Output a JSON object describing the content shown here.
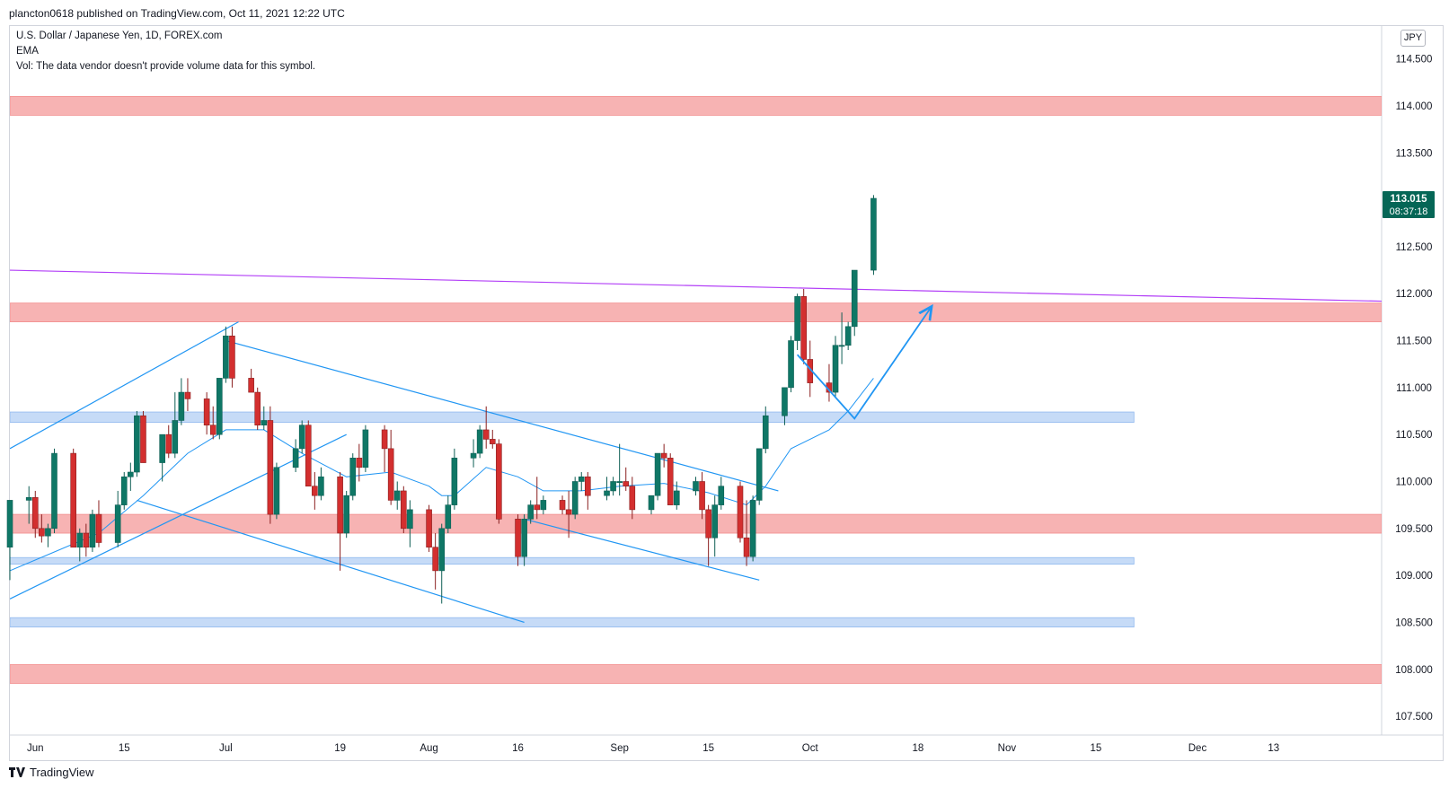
{
  "header": {
    "published": "plancton0618 published on TradingView.com, Oct 11, 2021 12:22 UTC"
  },
  "legend": {
    "symbol": "U.S. Dollar / Japanese Yen, 1D, FOREX.com",
    "indicator": "EMA",
    "volume_note": "Vol: The data vendor doesn't provide volume data for this symbol."
  },
  "currency_button": "JPY",
  "last_price": {
    "price": "113.015",
    "countdown": "08:37:18"
  },
  "footer": {
    "brand": "TradingView"
  },
  "colors": {
    "up": "#26a69a",
    "up_body": "#0f7766",
    "down": "#d32f2f",
    "resistance_zone": "#f7b3b3",
    "support_zone": "#c6dbf7",
    "trendline": "#2196f3",
    "long_trendline": "#b23ef7",
    "ema": "#2196f3",
    "price_badge": "#056656"
  },
  "chart_data": {
    "type": "candlestick",
    "title": "U.S. Dollar / Japanese Yen, 1D, FOREX.com",
    "y_axis": {
      "ticks": [
        "114.500",
        "114.000",
        "113.500",
        "113.000",
        "112.500",
        "112.000",
        "111.500",
        "111.000",
        "110.500",
        "110.000",
        "109.500",
        "109.000",
        "108.500",
        "108.000",
        "107.500"
      ],
      "range": [
        107.3,
        114.85
      ]
    },
    "x_axis": {
      "tick_labels": [
        "Jun",
        "15",
        "Jul",
        "19",
        "Aug",
        "16",
        "Sep",
        "15",
        "Oct",
        "18",
        "Nov",
        "15",
        "Dec",
        "13"
      ],
      "tick_dates": [
        "2021-06-01",
        "2021-06-15",
        "2021-07-01",
        "2021-07-19",
        "2021-08-02",
        "2021-08-16",
        "2021-09-01",
        "2021-09-15",
        "2021-10-01",
        "2021-10-18",
        "2021-11-01",
        "2021-11-15",
        "2021-12-01",
        "2021-12-13"
      ],
      "range": [
        "2021-05-28",
        "2021-12-30"
      ]
    },
    "candles": [
      {
        "d": "2021-05-28",
        "o": 109.3,
        "h": 109.8,
        "l": 108.95,
        "c": 109.8
      },
      {
        "d": "2021-05-31",
        "o": 109.8,
        "h": 109.95,
        "l": 109.55,
        "c": 109.83
      },
      {
        "d": "2021-06-01",
        "o": 109.83,
        "h": 109.9,
        "l": 109.4,
        "c": 109.5
      },
      {
        "d": "2021-06-02",
        "o": 109.5,
        "h": 109.65,
        "l": 109.35,
        "c": 109.42
      },
      {
        "d": "2021-06-03",
        "o": 109.42,
        "h": 109.55,
        "l": 109.3,
        "c": 109.5
      },
      {
        "d": "2021-06-04",
        "o": 109.5,
        "h": 110.35,
        "l": 109.45,
        "c": 110.3
      },
      {
        "d": "2021-06-07",
        "o": 110.3,
        "h": 110.35,
        "l": 109.3,
        "c": 109.3
      },
      {
        "d": "2021-06-08",
        "o": 109.3,
        "h": 109.5,
        "l": 109.15,
        "c": 109.45
      },
      {
        "d": "2021-06-09",
        "o": 109.45,
        "h": 109.55,
        "l": 109.2,
        "c": 109.3
      },
      {
        "d": "2021-06-10",
        "o": 109.3,
        "h": 109.7,
        "l": 109.25,
        "c": 109.65
      },
      {
        "d": "2021-06-11",
        "o": 109.65,
        "h": 109.8,
        "l": 109.3,
        "c": 109.35
      },
      {
        "d": "2021-06-14",
        "o": 109.35,
        "h": 109.9,
        "l": 109.3,
        "c": 109.75
      },
      {
        "d": "2021-06-15",
        "o": 109.75,
        "h": 110.1,
        "l": 109.7,
        "c": 110.05
      },
      {
        "d": "2021-06-16",
        "o": 110.05,
        "h": 110.2,
        "l": 109.9,
        "c": 110.1
      },
      {
        "d": "2021-06-17",
        "o": 110.1,
        "h": 110.75,
        "l": 110.05,
        "c": 110.7
      },
      {
        "d": "2021-06-18",
        "o": 110.7,
        "h": 110.75,
        "l": 110.2,
        "c": 110.2
      },
      {
        "d": "2021-06-21",
        "o": 110.2,
        "h": 110.5,
        "l": 110.0,
        "c": 110.5
      },
      {
        "d": "2021-06-22",
        "o": 110.5,
        "h": 110.6,
        "l": 110.25,
        "c": 110.3
      },
      {
        "d": "2021-06-23",
        "o": 110.3,
        "h": 110.95,
        "l": 110.25,
        "c": 110.65
      },
      {
        "d": "2021-06-24",
        "o": 110.65,
        "h": 111.1,
        "l": 110.6,
        "c": 110.95
      },
      {
        "d": "2021-06-25",
        "o": 110.95,
        "h": 111.1,
        "l": 110.75,
        "c": 110.88
      },
      {
        "d": "2021-06-28",
        "o": 110.88,
        "h": 110.95,
        "l": 110.5,
        "c": 110.6
      },
      {
        "d": "2021-06-29",
        "o": 110.6,
        "h": 110.8,
        "l": 110.45,
        "c": 110.5
      },
      {
        "d": "2021-06-30",
        "o": 110.5,
        "h": 111.1,
        "l": 110.45,
        "c": 111.1
      },
      {
        "d": "2021-07-01",
        "o": 111.1,
        "h": 111.65,
        "l": 111.05,
        "c": 111.55
      },
      {
        "d": "2021-07-02",
        "o": 111.55,
        "h": 111.65,
        "l": 111.0,
        "c": 111.1
      },
      {
        "d": "2021-07-05",
        "o": 111.1,
        "h": 111.2,
        "l": 110.95,
        "c": 110.95
      },
      {
        "d": "2021-07-06",
        "o": 110.95,
        "h": 111.0,
        "l": 110.55,
        "c": 110.6
      },
      {
        "d": "2021-07-07",
        "o": 110.6,
        "h": 110.8,
        "l": 110.55,
        "c": 110.65
      },
      {
        "d": "2021-07-08",
        "o": 110.65,
        "h": 110.8,
        "l": 109.55,
        "c": 109.65
      },
      {
        "d": "2021-07-09",
        "o": 109.65,
        "h": 110.2,
        "l": 109.6,
        "c": 110.15
      },
      {
        "d": "2021-07-12",
        "o": 110.15,
        "h": 110.45,
        "l": 110.1,
        "c": 110.35
      },
      {
        "d": "2021-07-13",
        "o": 110.35,
        "h": 110.65,
        "l": 110.3,
        "c": 110.6
      },
      {
        "d": "2021-07-14",
        "o": 110.6,
        "h": 110.65,
        "l": 109.95,
        "c": 109.95
      },
      {
        "d": "2021-07-15",
        "o": 109.95,
        "h": 110.1,
        "l": 109.7,
        "c": 109.85
      },
      {
        "d": "2021-07-16",
        "o": 109.85,
        "h": 110.15,
        "l": 109.8,
        "c": 110.05
      },
      {
        "d": "2021-07-19",
        "o": 110.05,
        "h": 110.1,
        "l": 109.05,
        "c": 109.45
      },
      {
        "d": "2021-07-20",
        "o": 109.45,
        "h": 109.9,
        "l": 109.4,
        "c": 109.85
      },
      {
        "d": "2021-07-21",
        "o": 109.85,
        "h": 110.3,
        "l": 109.8,
        "c": 110.25
      },
      {
        "d": "2021-07-22",
        "o": 110.25,
        "h": 110.4,
        "l": 110.0,
        "c": 110.15
      },
      {
        "d": "2021-07-23",
        "o": 110.15,
        "h": 110.6,
        "l": 110.1,
        "c": 110.55
      },
      {
        "d": "2021-07-26",
        "o": 110.55,
        "h": 110.6,
        "l": 110.1,
        "c": 110.35
      },
      {
        "d": "2021-07-27",
        "o": 110.35,
        "h": 110.55,
        "l": 109.75,
        "c": 109.8
      },
      {
        "d": "2021-07-28",
        "o": 109.8,
        "h": 110.0,
        "l": 109.7,
        "c": 109.9
      },
      {
        "d": "2021-07-29",
        "o": 109.9,
        "h": 109.95,
        "l": 109.45,
        "c": 109.5
      },
      {
        "d": "2021-07-30",
        "o": 109.5,
        "h": 109.8,
        "l": 109.3,
        "c": 109.7
      },
      {
        "d": "2021-08-02",
        "o": 109.7,
        "h": 109.75,
        "l": 109.25,
        "c": 109.3
      },
      {
        "d": "2021-08-03",
        "o": 109.3,
        "h": 109.45,
        "l": 108.85,
        "c": 109.05
      },
      {
        "d": "2021-08-04",
        "o": 109.05,
        "h": 109.55,
        "l": 108.7,
        "c": 109.5
      },
      {
        "d": "2021-08-05",
        "o": 109.5,
        "h": 109.85,
        "l": 109.45,
        "c": 109.75
      },
      {
        "d": "2021-08-06",
        "o": 109.75,
        "h": 110.35,
        "l": 109.7,
        "c": 110.25
      },
      {
        "d": "2021-08-09",
        "o": 110.25,
        "h": 110.45,
        "l": 110.15,
        "c": 110.3
      },
      {
        "d": "2021-08-10",
        "o": 110.3,
        "h": 110.6,
        "l": 110.25,
        "c": 110.55
      },
      {
        "d": "2021-08-11",
        "o": 110.55,
        "h": 110.8,
        "l": 110.35,
        "c": 110.45
      },
      {
        "d": "2021-08-12",
        "o": 110.45,
        "h": 110.55,
        "l": 110.35,
        "c": 110.4
      },
      {
        "d": "2021-08-13",
        "o": 110.4,
        "h": 110.45,
        "l": 109.55,
        "c": 109.6
      },
      {
        "d": "2021-08-16",
        "o": 109.6,
        "h": 109.65,
        "l": 109.1,
        "c": 109.2
      },
      {
        "d": "2021-08-17",
        "o": 109.2,
        "h": 109.65,
        "l": 109.1,
        "c": 109.6
      },
      {
        "d": "2021-08-18",
        "o": 109.6,
        "h": 109.8,
        "l": 109.55,
        "c": 109.75
      },
      {
        "d": "2021-08-19",
        "o": 109.75,
        "h": 110.05,
        "l": 109.6,
        "c": 109.7
      },
      {
        "d": "2021-08-20",
        "o": 109.7,
        "h": 109.85,
        "l": 109.65,
        "c": 109.8
      },
      {
        "d": "2021-08-23",
        "o": 109.8,
        "h": 109.85,
        "l": 109.65,
        "c": 109.7
      },
      {
        "d": "2021-08-24",
        "o": 109.7,
        "h": 109.9,
        "l": 109.4,
        "c": 109.65
      },
      {
        "d": "2021-08-25",
        "o": 109.65,
        "h": 110.05,
        "l": 109.6,
        "c": 110.0
      },
      {
        "d": "2021-08-26",
        "o": 110.0,
        "h": 110.1,
        "l": 109.9,
        "c": 110.05
      },
      {
        "d": "2021-08-27",
        "o": 110.05,
        "h": 110.1,
        "l": 109.7,
        "c": 109.85
      },
      {
        "d": "2021-08-30",
        "o": 109.85,
        "h": 110.05,
        "l": 109.8,
        "c": 109.9
      },
      {
        "d": "2021-08-31",
        "o": 109.9,
        "h": 110.05,
        "l": 109.85,
        "c": 110.0
      },
      {
        "d": "2021-09-01",
        "o": 110.0,
        "h": 110.4,
        "l": 109.85,
        "c": 110.0
      },
      {
        "d": "2021-09-02",
        "o": 110.0,
        "h": 110.15,
        "l": 109.9,
        "c": 109.95
      },
      {
        "d": "2021-09-03",
        "o": 109.95,
        "h": 110.05,
        "l": 109.6,
        "c": 109.7
      },
      {
        "d": "2021-09-06",
        "o": 109.7,
        "h": 109.85,
        "l": 109.65,
        "c": 109.85
      },
      {
        "d": "2021-09-07",
        "o": 109.85,
        "h": 110.3,
        "l": 109.8,
        "c": 110.3
      },
      {
        "d": "2021-09-08",
        "o": 110.3,
        "h": 110.4,
        "l": 110.15,
        "c": 110.25
      },
      {
        "d": "2021-09-09",
        "o": 110.25,
        "h": 110.3,
        "l": 109.75,
        "c": 109.75
      },
      {
        "d": "2021-09-10",
        "o": 109.75,
        "h": 110.0,
        "l": 109.7,
        "c": 109.9
      },
      {
        "d": "2021-09-13",
        "o": 109.9,
        "h": 110.05,
        "l": 109.85,
        "c": 110.0
      },
      {
        "d": "2021-09-14",
        "o": 110.0,
        "h": 110.1,
        "l": 109.6,
        "c": 109.7
      },
      {
        "d": "2021-09-15",
        "o": 109.7,
        "h": 109.75,
        "l": 109.1,
        "c": 109.4
      },
      {
        "d": "2021-09-16",
        "o": 109.4,
        "h": 109.85,
        "l": 109.2,
        "c": 109.75
      },
      {
        "d": "2021-09-17",
        "o": 109.75,
        "h": 110.05,
        "l": 109.7,
        "c": 109.95
      },
      {
        "d": "2021-09-20",
        "o": 109.95,
        "h": 110.0,
        "l": 109.35,
        "c": 109.4
      },
      {
        "d": "2021-09-21",
        "o": 109.4,
        "h": 109.8,
        "l": 109.1,
        "c": 109.2
      },
      {
        "d": "2021-09-22",
        "o": 109.2,
        "h": 109.85,
        "l": 109.15,
        "c": 109.8
      },
      {
        "d": "2021-09-23",
        "o": 109.8,
        "h": 110.35,
        "l": 109.75,
        "c": 110.35
      },
      {
        "d": "2021-09-24",
        "o": 110.35,
        "h": 110.8,
        "l": 110.3,
        "c": 110.7
      },
      {
        "d": "2021-09-27",
        "o": 110.7,
        "h": 111.0,
        "l": 110.6,
        "c": 111.0
      },
      {
        "d": "2021-09-28",
        "o": 111.0,
        "h": 111.55,
        "l": 110.95,
        "c": 111.5
      },
      {
        "d": "2021-09-29",
        "o": 111.5,
        "h": 112.0,
        "l": 111.4,
        "c": 111.97
      },
      {
        "d": "2021-09-30",
        "o": 111.97,
        "h": 112.05,
        "l": 111.25,
        "c": 111.3
      },
      {
        "d": "2021-10-01",
        "o": 111.3,
        "h": 111.5,
        "l": 110.9,
        "c": 111.05
      },
      {
        "d": "2021-10-04",
        "o": 111.05,
        "h": 111.25,
        "l": 110.85,
        "c": 110.95
      },
      {
        "d": "2021-10-05",
        "o": 110.95,
        "h": 111.55,
        "l": 110.9,
        "c": 111.45
      },
      {
        "d": "2021-10-06",
        "o": 111.45,
        "h": 111.8,
        "l": 111.25,
        "c": 111.45
      },
      {
        "d": "2021-10-07",
        "o": 111.45,
        "h": 111.7,
        "l": 111.4,
        "c": 111.65
      },
      {
        "d": "2021-10-08",
        "o": 111.65,
        "h": 112.25,
        "l": 111.55,
        "c": 112.25
      },
      {
        "d": "2021-10-11",
        "o": 112.25,
        "h": 113.05,
        "l": 112.2,
        "c": 113.015
      }
    ],
    "ema": [
      {
        "d": "2021-05-28",
        "v": 109.05
      },
      {
        "d": "2021-06-04",
        "v": 109.25
      },
      {
        "d": "2021-06-11",
        "v": 109.45
      },
      {
        "d": "2021-06-18",
        "v": 109.85
      },
      {
        "d": "2021-06-25",
        "v": 110.3
      },
      {
        "d": "2021-07-01",
        "v": 110.55
      },
      {
        "d": "2021-07-07",
        "v": 110.55
      },
      {
        "d": "2021-07-13",
        "v": 110.3
      },
      {
        "d": "2021-07-20",
        "v": 110.05
      },
      {
        "d": "2021-07-27",
        "v": 110.1
      },
      {
        "d": "2021-08-02",
        "v": 109.95
      },
      {
        "d": "2021-08-04",
        "v": 109.85
      },
      {
        "d": "2021-08-06",
        "v": 109.85
      },
      {
        "d": "2021-08-11",
        "v": 110.15
      },
      {
        "d": "2021-08-16",
        "v": 110.05
      },
      {
        "d": "2021-08-20",
        "v": 109.9
      },
      {
        "d": "2021-08-26",
        "v": 109.9
      },
      {
        "d": "2021-09-01",
        "v": 109.95
      },
      {
        "d": "2021-09-08",
        "v": 109.98
      },
      {
        "d": "2021-09-15",
        "v": 109.88
      },
      {
        "d": "2021-09-21",
        "v": 109.75
      },
      {
        "d": "2021-09-24",
        "v": 109.95
      },
      {
        "d": "2021-09-28",
        "v": 110.35
      },
      {
        "d": "2021-10-04",
        "v": 110.55
      },
      {
        "d": "2021-10-07",
        "v": 110.75
      },
      {
        "d": "2021-10-11",
        "v": 111.1
      }
    ],
    "zones": [
      {
        "kind": "resistance",
        "from": 113.9,
        "to": 114.1,
        "start": "2021-05-28",
        "end": "2021-12-30"
      },
      {
        "kind": "resistance",
        "from": 111.7,
        "to": 111.9,
        "start": "2021-05-28",
        "end": "2021-12-30"
      },
      {
        "kind": "support",
        "from": 110.63,
        "to": 110.74,
        "start": "2021-05-28",
        "end": "2021-11-21"
      },
      {
        "kind": "resistance",
        "from": 109.45,
        "to": 109.65,
        "start": "2021-05-28",
        "end": "2021-12-30"
      },
      {
        "kind": "support",
        "from": 109.12,
        "to": 109.19,
        "start": "2021-05-28",
        "end": "2021-11-21"
      },
      {
        "kind": "support",
        "from": 108.45,
        "to": 108.55,
        "start": "2021-05-28",
        "end": "2021-11-21"
      },
      {
        "kind": "resistance",
        "from": 107.85,
        "to": 108.05,
        "start": "2021-05-28",
        "end": "2021-12-30"
      }
    ],
    "trendlines": [
      {
        "kind": "long",
        "p1": {
          "d": "2021-05-28",
          "v": 112.25
        },
        "p2": {
          "d": "2021-12-30",
          "v": 111.92
        }
      },
      {
        "kind": "channel",
        "p1": {
          "d": "2021-05-28",
          "v": 110.35
        },
        "p2": {
          "d": "2021-07-03",
          "v": 111.7
        }
      },
      {
        "kind": "channel",
        "p1": {
          "d": "2021-05-28",
          "v": 108.75
        },
        "p2": {
          "d": "2021-07-20",
          "v": 110.5
        }
      },
      {
        "kind": "channel",
        "p1": {
          "d": "2021-07-01",
          "v": 111.5
        },
        "p2": {
          "d": "2021-09-26",
          "v": 109.9
        }
      },
      {
        "kind": "channel",
        "p1": {
          "d": "2021-06-17",
          "v": 109.8
        },
        "p2": {
          "d": "2021-08-17",
          "v": 108.5
        }
      },
      {
        "kind": "channel",
        "p1": {
          "d": "2021-08-17",
          "v": 109.6
        },
        "p2": {
          "d": "2021-09-23",
          "v": 108.95
        }
      }
    ],
    "projection": {
      "points": [
        {
          "d": "2021-09-29",
          "v": 111.35
        },
        {
          "d": "2021-10-08",
          "v": 110.67
        },
        {
          "d": "2021-10-20",
          "v": 111.85
        }
      ],
      "arrow": true
    }
  }
}
